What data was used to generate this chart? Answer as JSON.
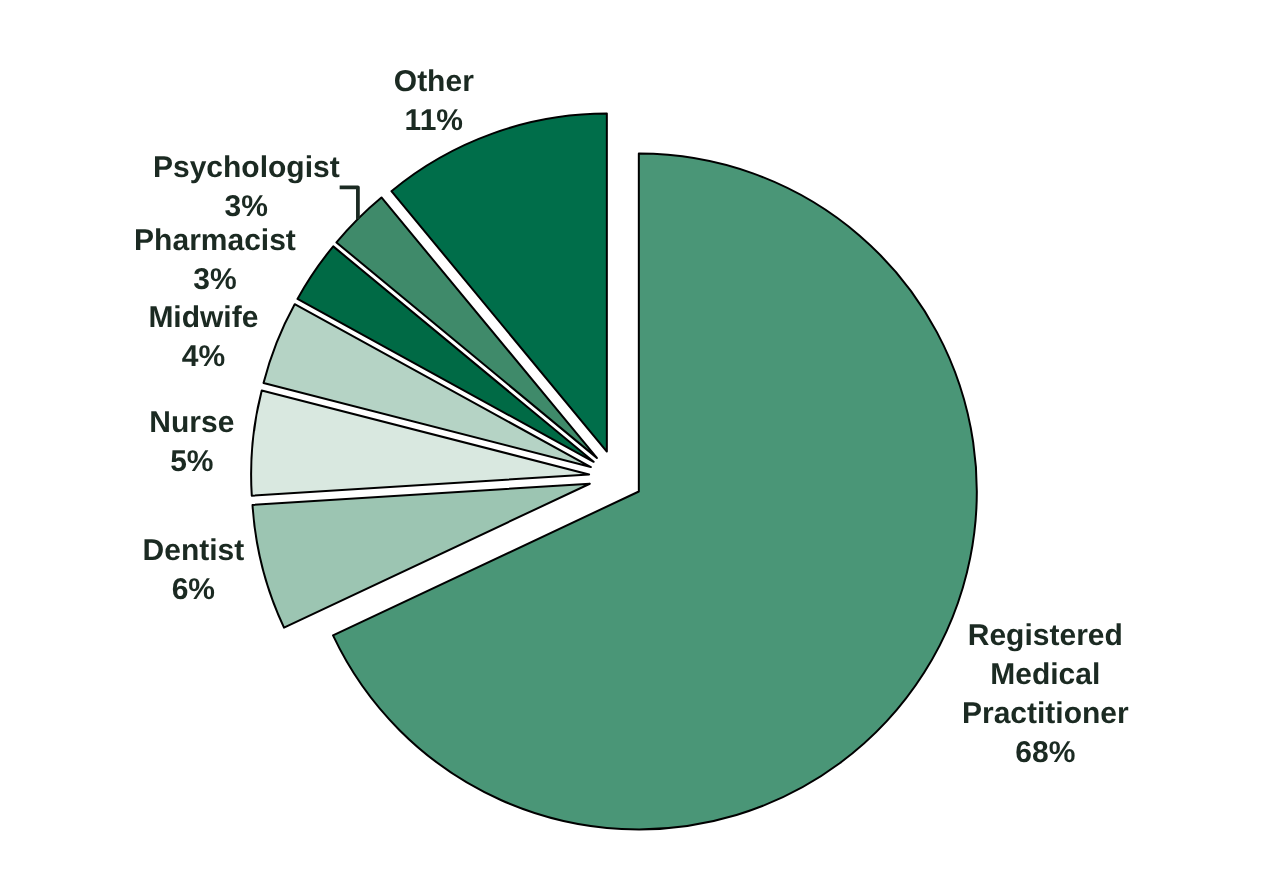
{
  "chart_data": {
    "type": "pie",
    "categories": [
      "Registered\nMedical\nPractitioner",
      "Dentist",
      "Nurse",
      "Midwife",
      "Pharmacist",
      "Psychologist",
      "Other"
    ],
    "values": [
      68,
      6,
      5,
      4,
      3,
      3,
      11
    ],
    "value_labels": [
      "68%",
      "6%",
      "5%",
      "4%",
      "3%",
      "3%",
      "11%"
    ],
    "colors": [
      "#4a9677",
      "#9cc5b2",
      "#d9e8e0",
      "#b5d3c5",
      "#006a45",
      "#3f8a6a",
      "#006e4a"
    ],
    "legend": false
  }
}
